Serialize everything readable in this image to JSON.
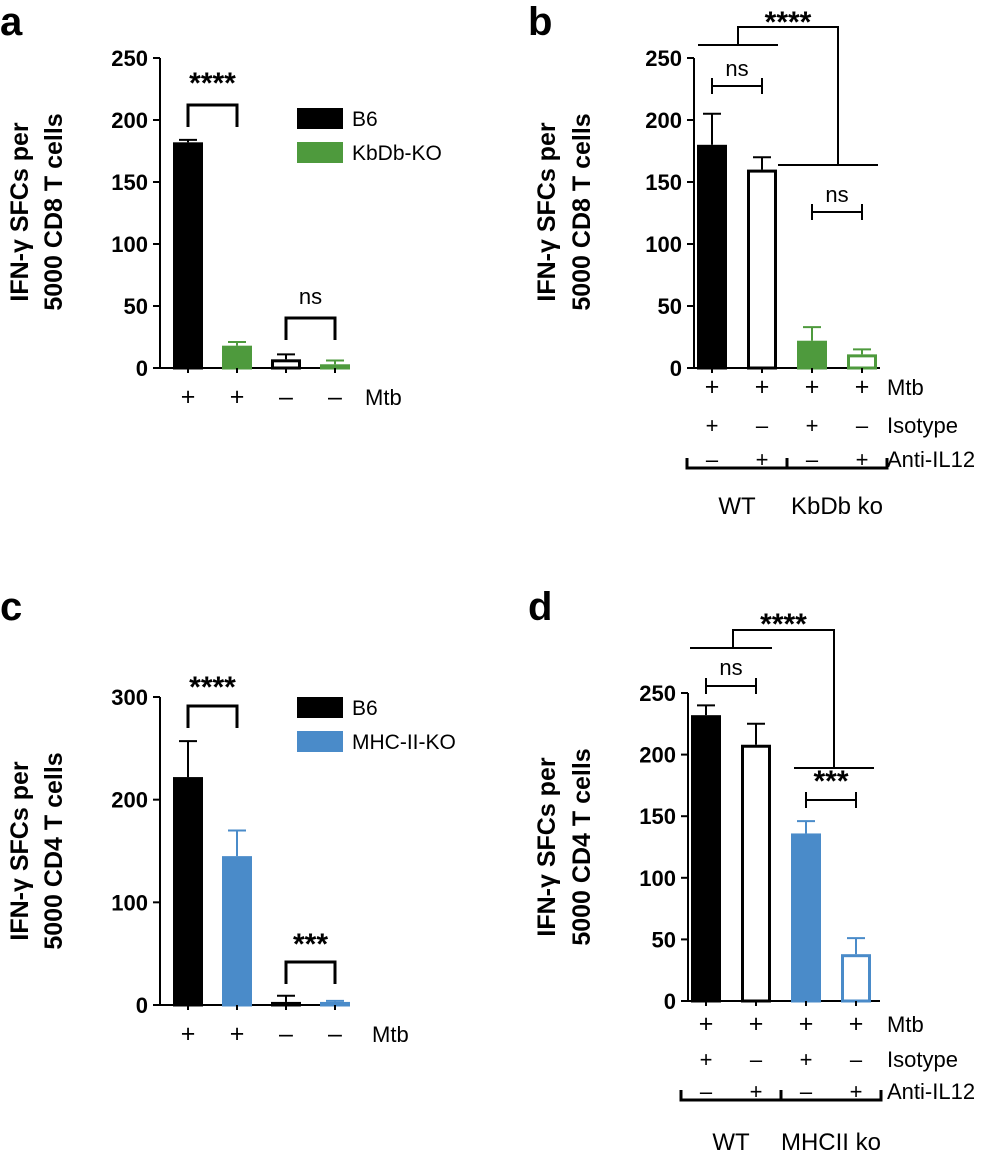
{
  "chart_data": [
    {
      "panel": "a",
      "type": "bar",
      "ylabel": [
        "IFN-γ SFCs per",
        "5000 CD8 T cells"
      ],
      "ylim": [
        0,
        250
      ],
      "yticks": [
        0,
        50,
        100,
        150,
        200,
        250
      ],
      "legend": [
        {
          "name": "B6",
          "color": "#000000"
        },
        {
          "name": "KbDb-KO",
          "color": "#4e9a3d"
        }
      ],
      "bars": [
        {
          "value": 182,
          "error": 2,
          "fill": "#000000",
          "stroke": "#000000"
        },
        {
          "value": 18,
          "error": 3,
          "fill": "#4e9a3d",
          "stroke": "#4e9a3d"
        },
        {
          "value": 7,
          "error": 4,
          "fill": "#ffffff",
          "stroke": "#000000"
        },
        {
          "value": 3,
          "error": 3,
          "fill": "#ffffff",
          "stroke": "#4e9a3d"
        }
      ],
      "conditions": [
        {
          "label": "Mtb",
          "values": [
            "+",
            "+",
            "–",
            "–"
          ]
        }
      ],
      "annotations": [
        {
          "bar1": 0,
          "bar2": 1,
          "text": "****",
          "kind": "sig"
        },
        {
          "bar1": 2,
          "bar2": 3,
          "text": "ns",
          "kind": "ns"
        }
      ]
    },
    {
      "panel": "b",
      "type": "bar",
      "ylabel": [
        "IFN-γ SFCs per",
        "5000 CD8 T cells"
      ],
      "ylim": [
        0,
        250
      ],
      "yticks": [
        0,
        50,
        100,
        150,
        200,
        250
      ],
      "bars": [
        {
          "value": 180,
          "error": 25,
          "fill": "#000000",
          "stroke": "#000000"
        },
        {
          "value": 160,
          "error": 10,
          "fill": "#ffffff",
          "stroke": "#000000"
        },
        {
          "value": 22,
          "error": 11,
          "fill": "#4e9a3d",
          "stroke": "#4e9a3d"
        },
        {
          "value": 11,
          "error": 4,
          "fill": "#ffffff",
          "stroke": "#4e9a3d"
        }
      ],
      "conditions": [
        {
          "label": "Mtb",
          "values": [
            "+",
            "+",
            "+",
            "+"
          ]
        },
        {
          "label": "Isotype",
          "values": [
            "+",
            "–",
            "+",
            "–"
          ]
        },
        {
          "label": "Anti-IL12",
          "values": [
            "–",
            "+",
            "–",
            "+"
          ]
        }
      ],
      "groups": [
        "WT",
        "KbDb ko"
      ],
      "annotations": [
        {
          "bar1": 0,
          "bar2": 1,
          "text": "ns",
          "kind": "ns"
        },
        {
          "bar1": 2,
          "bar2": 3,
          "text": "ns",
          "kind": "ns"
        },
        {
          "text": "****",
          "kind": "group-sig"
        }
      ]
    },
    {
      "panel": "c",
      "type": "bar",
      "ylabel": [
        "IFN-γ SFCs per",
        "5000 CD4 T cells"
      ],
      "ylim": [
        0,
        300
      ],
      "yticks": [
        0,
        100,
        200,
        300
      ],
      "legend": [
        {
          "name": "B6",
          "color": "#000000"
        },
        {
          "name": "MHC-II-KO",
          "color": "#4a8bc9"
        }
      ],
      "bars": [
        {
          "value": 222,
          "error": 35,
          "fill": "#000000",
          "stroke": "#000000"
        },
        {
          "value": 145,
          "error": 25,
          "fill": "#4a8bc9",
          "stroke": "#4a8bc9"
        },
        {
          "value": 3,
          "error": 6,
          "fill": "#ffffff",
          "stroke": "#000000"
        },
        {
          "value": 3,
          "error": 1,
          "fill": "#ffffff",
          "stroke": "#4a8bc9"
        }
      ],
      "conditions": [
        {
          "label": "Mtb",
          "values": [
            "+",
            "+",
            "–",
            "–"
          ]
        }
      ],
      "annotations": [
        {
          "bar1": 0,
          "bar2": 1,
          "text": "****",
          "kind": "sig"
        },
        {
          "bar1": 2,
          "bar2": 3,
          "text": "***",
          "kind": "sig"
        }
      ]
    },
    {
      "panel": "d",
      "type": "bar",
      "ylabel": [
        "IFN-γ SFCs per",
        "5000 CD4 T cells"
      ],
      "ylim": [
        0,
        250
      ],
      "yticks": [
        0,
        50,
        100,
        150,
        200,
        250
      ],
      "bars": [
        {
          "value": 232,
          "error": 8,
          "fill": "#000000",
          "stroke": "#000000"
        },
        {
          "value": 208,
          "error": 17,
          "fill": "#ffffff",
          "stroke": "#000000"
        },
        {
          "value": 136,
          "error": 10,
          "fill": "#4a8bc9",
          "stroke": "#4a8bc9"
        },
        {
          "value": 38,
          "error": 13,
          "fill": "#ffffff",
          "stroke": "#4a8bc9"
        }
      ],
      "conditions": [
        {
          "label": "Mtb",
          "values": [
            "+",
            "+",
            "+",
            "+"
          ]
        },
        {
          "label": "Isotype",
          "values": [
            "+",
            "–",
            "+",
            "–"
          ]
        },
        {
          "label": "Anti-IL12",
          "values": [
            "–",
            "+",
            "–",
            "+"
          ]
        }
      ],
      "groups": [
        "WT",
        "MHCII ko"
      ],
      "annotations": [
        {
          "bar1": 0,
          "bar2": 1,
          "text": "ns",
          "kind": "ns"
        },
        {
          "bar1": 2,
          "bar2": 3,
          "text": "***",
          "kind": "sig"
        },
        {
          "text": "****",
          "kind": "group-sig"
        }
      ]
    }
  ]
}
